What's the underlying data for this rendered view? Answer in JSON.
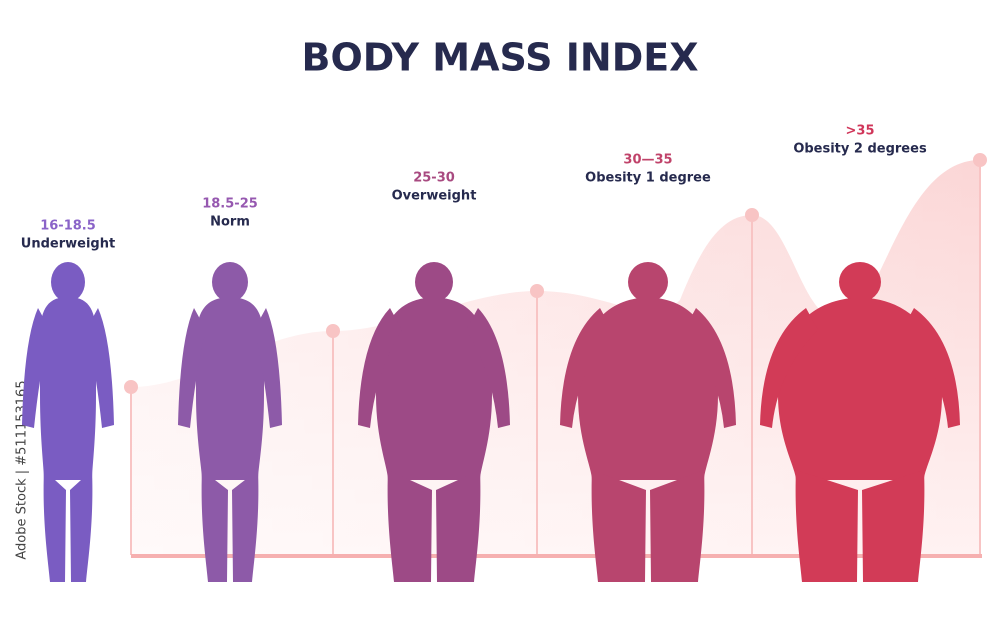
{
  "title": "BODY MASS INDEX",
  "categories": [
    {
      "range": "16-18.5",
      "label": "Underweight"
    },
    {
      "range": "18.5-25",
      "label": "Norm"
    },
    {
      "range": "25-30",
      "label": "Overweight"
    },
    {
      "range": "30—35",
      "label": "Obesity 1 degree"
    },
    {
      "range": ">35",
      "label": "Obesity 2 degrees"
    }
  ],
  "watermark": "Adobe Stock | #511153165"
}
